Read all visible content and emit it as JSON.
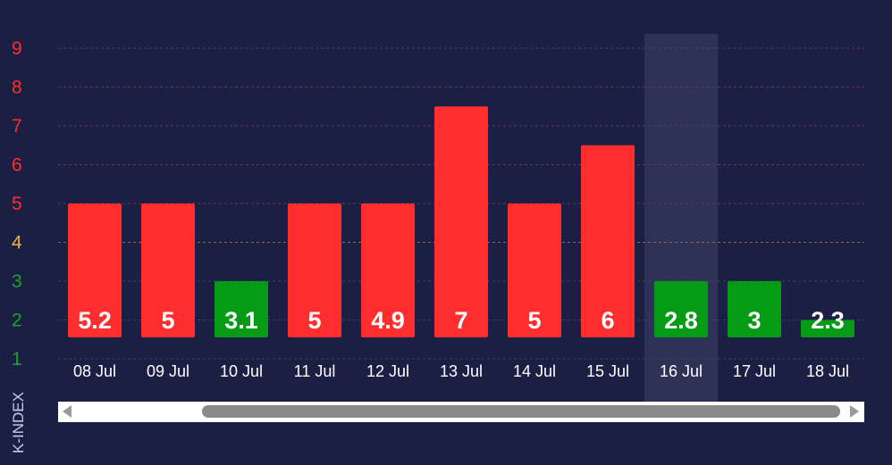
{
  "chart_data": {
    "type": "bar",
    "ylabel": "K-INDEX",
    "ylim": [
      1,
      9
    ],
    "y_ticks": [
      {
        "value": 9,
        "label": "9",
        "color": "#ff2d2d"
      },
      {
        "value": 8,
        "label": "8",
        "color": "#ff2d2d"
      },
      {
        "value": 7,
        "label": "7",
        "color": "#ff2d2d"
      },
      {
        "value": 6,
        "label": "6",
        "color": "#ff2d2d"
      },
      {
        "value": 5,
        "label": "5",
        "color": "#ff2d2d"
      },
      {
        "value": 4,
        "label": "4",
        "color": "#f0b233"
      },
      {
        "value": 3,
        "label": "3",
        "color": "#1aa52a"
      },
      {
        "value": 2,
        "label": "2",
        "color": "#1aa52a"
      },
      {
        "value": 1,
        "label": "1",
        "color": "#1aa52a"
      }
    ],
    "categories": [
      "08 Jul",
      "09 Jul",
      "10 Jul",
      "11 Jul",
      "12 Jul",
      "13 Jul",
      "14 Jul",
      "15 Jul",
      "16 Jul",
      "17 Jul",
      "18 Jul"
    ],
    "values": [
      5.2,
      5,
      3.1,
      5,
      4.9,
      7,
      5,
      6,
      2.8,
      3,
      2.3
    ],
    "bar_heights_in_units": [
      5,
      5,
      3,
      5,
      5,
      7.5,
      5,
      6.5,
      3,
      3,
      2
    ],
    "value_labels": [
      "5.2",
      "5",
      "3.1",
      "5",
      "4.9",
      "7",
      "5",
      "6",
      "2.8",
      "3",
      "2.3"
    ],
    "bar_colors": [
      "#ff2d2d",
      "#ff2d2d",
      "#069b14",
      "#ff2d2d",
      "#ff2d2d",
      "#ff2d2d",
      "#ff2d2d",
      "#ff2d2d",
      "#069b14",
      "#069b14",
      "#069b14"
    ],
    "highlighted_category": "16 Jul",
    "grid": true,
    "colors": {
      "background": "#1c1f44",
      "storm": "#ff2d2d",
      "quiet": "#069b14",
      "warning_line": "#f0b233",
      "highlight": "#2f3258"
    }
  },
  "scrollbar": {
    "left_arrow_icon": "triangle-left-icon",
    "right_arrow_icon": "triangle-right-icon",
    "position_fraction": 0.99
  }
}
